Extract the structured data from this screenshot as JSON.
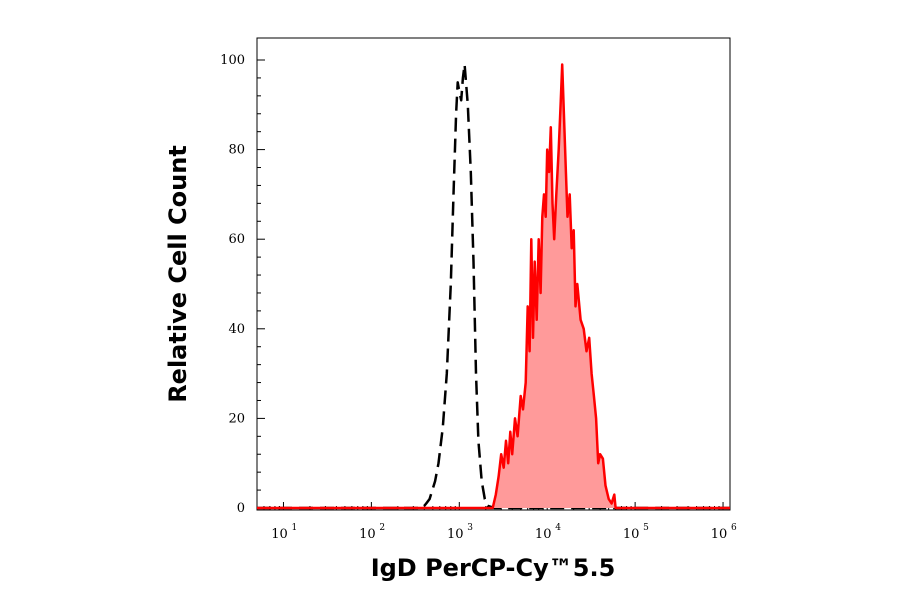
{
  "chart_data": {
    "type": "area",
    "xlabel": "IgD PerCP-Cy™5.5",
    "ylabel": "Relative Cell Count",
    "x_scale": "log",
    "xlim": [
      5,
      1200000
    ],
    "ylim": [
      0,
      100
    ],
    "x_ticks": [
      {
        "base": "10",
        "exp": "1",
        "value": 10
      },
      {
        "base": "10",
        "exp": "2",
        "value": 100
      },
      {
        "base": "10",
        "exp": "3",
        "value": 1000
      },
      {
        "base": "10",
        "exp": "4",
        "value": 10000
      },
      {
        "base": "10",
        "exp": "5",
        "value": 100000
      },
      {
        "base": "10",
        "exp": "6",
        "value": 1000000
      }
    ],
    "y_ticks": [
      "0",
      "20",
      "40",
      "60",
      "80",
      "100"
    ],
    "series": [
      {
        "style": "dashed",
        "color": "#000000",
        "fill": false,
        "points": [
          [
            5,
            0
          ],
          [
            60,
            0
          ],
          [
            150,
            0
          ],
          [
            300,
            0
          ],
          [
            380,
            0
          ],
          [
            420,
            1
          ],
          [
            460,
            2
          ],
          [
            530,
            6
          ],
          [
            580,
            10
          ],
          [
            650,
            18
          ],
          [
            720,
            30
          ],
          [
            800,
            50
          ],
          [
            860,
            70
          ],
          [
            920,
            88
          ],
          [
            960,
            95
          ],
          [
            1000,
            93
          ],
          [
            1050,
            91
          ],
          [
            1100,
            96
          ],
          [
            1150,
            99
          ],
          [
            1250,
            90
          ],
          [
            1350,
            75
          ],
          [
            1450,
            55
          ],
          [
            1550,
            30
          ],
          [
            1650,
            15
          ],
          [
            1800,
            6
          ],
          [
            1950,
            2
          ],
          [
            2100,
            0.5
          ],
          [
            2500,
            0
          ],
          [
            4000,
            0
          ],
          [
            10000,
            0
          ],
          [
            50000,
            0
          ],
          [
            200000,
            0
          ],
          [
            1200000,
            0
          ]
        ]
      },
      {
        "style": "solid",
        "color": "#ff0000",
        "fill": true,
        "fill_color": "#ff9a9a",
        "points": [
          [
            5,
            0
          ],
          [
            2000,
            0
          ],
          [
            2400,
            0
          ],
          [
            2600,
            3
          ],
          [
            2800,
            7
          ],
          [
            3000,
            12
          ],
          [
            3200,
            9
          ],
          [
            3400,
            15
          ],
          [
            3600,
            10
          ],
          [
            3800,
            17
          ],
          [
            4000,
            12
          ],
          [
            4300,
            20
          ],
          [
            4600,
            16
          ],
          [
            5000,
            25
          ],
          [
            5300,
            22
          ],
          [
            5700,
            28
          ],
          [
            6000,
            45
          ],
          [
            6300,
            35
          ],
          [
            6600,
            60
          ],
          [
            6900,
            38
          ],
          [
            7200,
            55
          ],
          [
            7600,
            42
          ],
          [
            8000,
            60
          ],
          [
            8400,
            48
          ],
          [
            8800,
            65
          ],
          [
            9200,
            70
          ],
          [
            9600,
            65
          ],
          [
            10000,
            80
          ],
          [
            10500,
            75
          ],
          [
            11000,
            85
          ],
          [
            11500,
            68
          ],
          [
            12000,
            60
          ],
          [
            12700,
            70
          ],
          [
            13500,
            80
          ],
          [
            14200,
            90
          ],
          [
            14800,
            99
          ],
          [
            15500,
            88
          ],
          [
            16300,
            75
          ],
          [
            17000,
            65
          ],
          [
            18000,
            70
          ],
          [
            19000,
            58
          ],
          [
            20000,
            62
          ],
          [
            21000,
            45
          ],
          [
            22000,
            50
          ],
          [
            24000,
            42
          ],
          [
            26000,
            40
          ],
          [
            28000,
            35
          ],
          [
            30000,
            38
          ],
          [
            32000,
            30
          ],
          [
            34000,
            25
          ],
          [
            36000,
            20
          ],
          [
            38000,
            10
          ],
          [
            40000,
            12
          ],
          [
            43000,
            11
          ],
          [
            46000,
            5
          ],
          [
            50000,
            2
          ],
          [
            54000,
            1
          ],
          [
            58000,
            3
          ],
          [
            60000,
            0
          ],
          [
            80000,
            0
          ],
          [
            200000,
            0
          ],
          [
            1200000,
            0
          ]
        ]
      }
    ]
  }
}
